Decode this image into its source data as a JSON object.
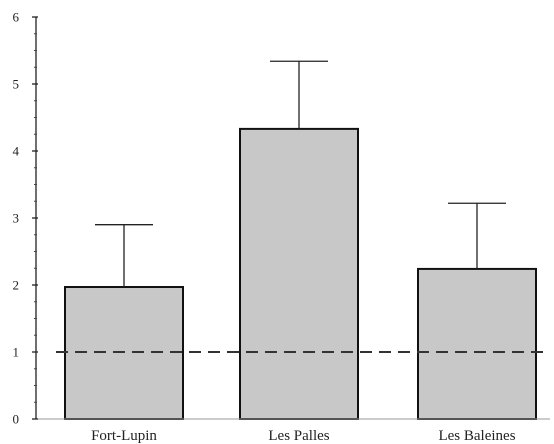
{
  "chart_data": {
    "type": "bar",
    "categories": [
      "Fort-Lupin",
      "Les Palles",
      "Les Baleines"
    ],
    "values": [
      1.97,
      4.33,
      2.24
    ],
    "error_upper": [
      2.9,
      5.34,
      3.22
    ],
    "reference_line": 1,
    "ylim": [
      0,
      6
    ],
    "yticks": [
      "0",
      "1",
      "2",
      "3",
      "4",
      "5",
      "6"
    ],
    "grid": false,
    "legend": "none",
    "colors": {
      "bar_fill": "#c8c8c8",
      "bar_stroke": "#111111",
      "ref_line": "#333333"
    }
  }
}
